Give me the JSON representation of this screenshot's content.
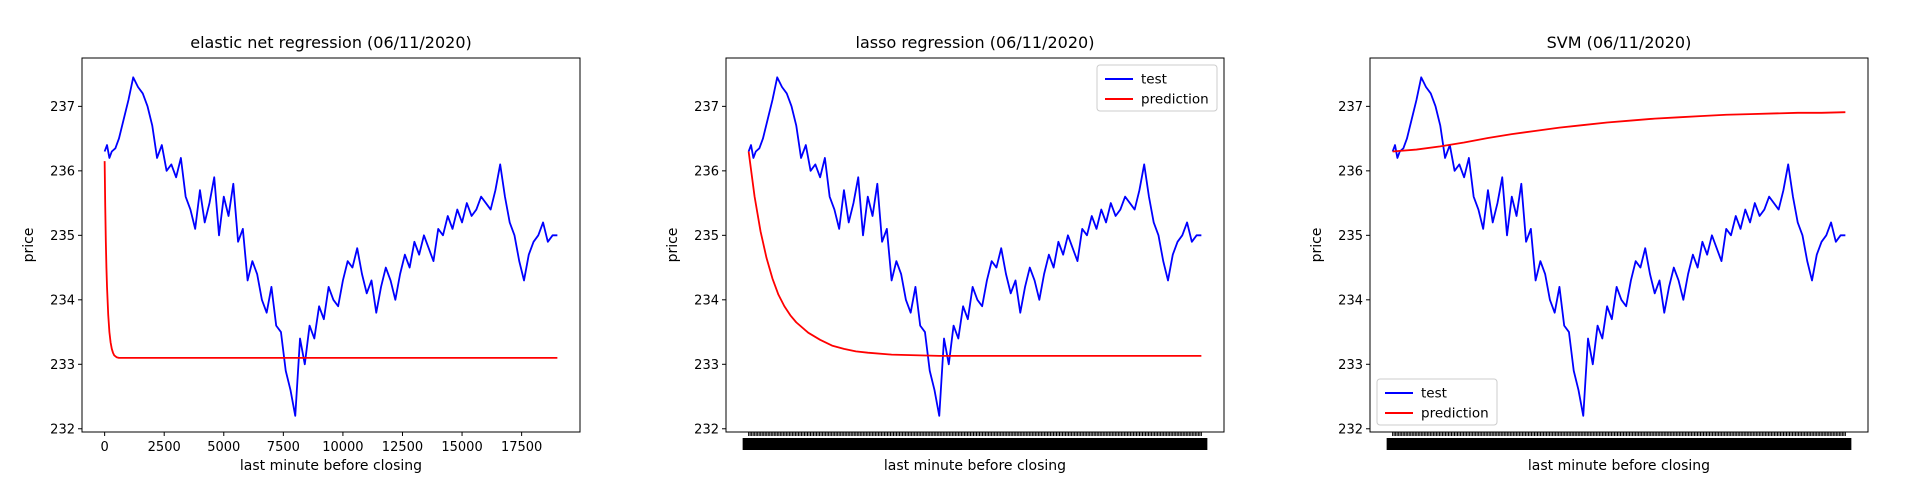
{
  "chart_data": [
    {
      "type": "line",
      "title": "elastic net regression (06/11/2020)",
      "xlabel": "last minute before closing",
      "ylabel": "price",
      "xlim": [
        -950,
        19950
      ],
      "ylim": [
        231.95,
        237.75
      ],
      "xticks": [
        0,
        2500,
        5000,
        7500,
        10000,
        12500,
        15000,
        17500
      ],
      "xtick_labels": [
        "0",
        "2500",
        "5000",
        "7500",
        "10000",
        "12500",
        "15000",
        "17500"
      ],
      "dense_xticks": false,
      "yticks": [
        232,
        233,
        234,
        235,
        236,
        237
      ],
      "ytick_labels": [
        "232",
        "233",
        "234",
        "235",
        "236",
        "237"
      ],
      "legend": null,
      "series": [
        {
          "name": "test",
          "color": "#0000ff",
          "x": [
            0,
            100,
            200,
            300,
            450,
            600,
            800,
            1000,
            1200,
            1400,
            1600,
            1800,
            2000,
            2200,
            2400,
            2600,
            2800,
            3000,
            3200,
            3400,
            3600,
            3800,
            4000,
            4200,
            4400,
            4600,
            4800,
            5000,
            5200,
            5400,
            5600,
            5800,
            6000,
            6200,
            6400,
            6600,
            6800,
            7000,
            7200,
            7400,
            7600,
            7800,
            8000,
            8100,
            8200,
            8400,
            8600,
            8800,
            9000,
            9200,
            9400,
            9600,
            9800,
            10000,
            10200,
            10400,
            10600,
            10800,
            11000,
            11200,
            11400,
            11600,
            11800,
            12000,
            12200,
            12400,
            12600,
            12800,
            13000,
            13200,
            13400,
            13600,
            13800,
            14000,
            14200,
            14400,
            14600,
            14800,
            15000,
            15200,
            15400,
            15600,
            15800,
            16000,
            16200,
            16400,
            16600,
            16800,
            17000,
            17200,
            17400,
            17600,
            17800,
            18000,
            18200,
            18400,
            18600,
            18800,
            19000
          ],
          "y": [
            236.3,
            236.4,
            236.2,
            236.3,
            236.35,
            236.5,
            236.8,
            237.1,
            237.45,
            237.3,
            237.2,
            237.0,
            236.7,
            236.2,
            236.4,
            236.0,
            236.1,
            235.9,
            236.2,
            235.6,
            235.4,
            235.1,
            235.7,
            235.2,
            235.5,
            235.9,
            235.0,
            235.6,
            235.3,
            235.8,
            234.9,
            235.1,
            234.3,
            234.6,
            234.4,
            234.0,
            233.8,
            234.2,
            233.6,
            233.5,
            232.9,
            232.6,
            232.2,
            232.8,
            233.4,
            233.0,
            233.6,
            233.4,
            233.9,
            233.7,
            234.2,
            234.0,
            233.9,
            234.3,
            234.6,
            234.5,
            234.8,
            234.4,
            234.1,
            234.3,
            233.8,
            234.2,
            234.5,
            234.3,
            234.0,
            234.4,
            234.7,
            234.5,
            234.9,
            234.7,
            235.0,
            234.8,
            234.6,
            235.1,
            235.0,
            235.3,
            235.1,
            235.4,
            235.2,
            235.5,
            235.3,
            235.4,
            235.6,
            235.5,
            235.4,
            235.7,
            236.1,
            235.6,
            235.2,
            235.0,
            234.6,
            234.3,
            234.7,
            234.9,
            235.0,
            235.2,
            234.9,
            235.0,
            235.0
          ]
        },
        {
          "name": "prediction",
          "color": "#ff0000",
          "x": [
            0,
            25,
            50,
            75,
            100,
            150,
            200,
            250,
            300,
            350,
            400,
            500,
            600,
            700,
            800,
            1000,
            1500,
            2000,
            5000,
            10000,
            15000,
            19000
          ],
          "y": [
            236.15,
            235.45,
            234.9,
            234.5,
            234.2,
            233.77,
            233.5,
            233.34,
            233.24,
            233.18,
            233.14,
            233.11,
            233.1,
            233.1,
            233.1,
            233.1,
            233.1,
            233.1,
            233.1,
            233.1,
            233.1,
            233.1
          ]
        }
      ]
    },
    {
      "type": "line",
      "title": "lasso regression (06/11/2020)",
      "xlabel": "last minute before closing",
      "ylabel": "price",
      "xlim": [
        -950,
        19950
      ],
      "ylim": [
        231.95,
        237.75
      ],
      "xticks": [],
      "xtick_labels": [],
      "dense_xticks": true,
      "yticks": [
        232,
        233,
        234,
        235,
        236,
        237
      ],
      "ytick_labels": [
        "232",
        "233",
        "234",
        "235",
        "236",
        "237"
      ],
      "legend": {
        "position": "upper right",
        "entries": [
          "test",
          "prediction"
        ]
      },
      "series": [
        {
          "name": "test",
          "color": "#0000ff",
          "x": [
            0,
            100,
            200,
            300,
            450,
            600,
            800,
            1000,
            1200,
            1400,
            1600,
            1800,
            2000,
            2200,
            2400,
            2600,
            2800,
            3000,
            3200,
            3400,
            3600,
            3800,
            4000,
            4200,
            4400,
            4600,
            4800,
            5000,
            5200,
            5400,
            5600,
            5800,
            6000,
            6200,
            6400,
            6600,
            6800,
            7000,
            7200,
            7400,
            7600,
            7800,
            8000,
            8100,
            8200,
            8400,
            8600,
            8800,
            9000,
            9200,
            9400,
            9600,
            9800,
            10000,
            10200,
            10400,
            10600,
            10800,
            11000,
            11200,
            11400,
            11600,
            11800,
            12000,
            12200,
            12400,
            12600,
            12800,
            13000,
            13200,
            13400,
            13600,
            13800,
            14000,
            14200,
            14400,
            14600,
            14800,
            15000,
            15200,
            15400,
            15600,
            15800,
            16000,
            16200,
            16400,
            16600,
            16800,
            17000,
            17200,
            17400,
            17600,
            17800,
            18000,
            18200,
            18400,
            18600,
            18800,
            19000
          ],
          "y": [
            236.3,
            236.4,
            236.2,
            236.3,
            236.35,
            236.5,
            236.8,
            237.1,
            237.45,
            237.3,
            237.2,
            237.0,
            236.7,
            236.2,
            236.4,
            236.0,
            236.1,
            235.9,
            236.2,
            235.6,
            235.4,
            235.1,
            235.7,
            235.2,
            235.5,
            235.9,
            235.0,
            235.6,
            235.3,
            235.8,
            234.9,
            235.1,
            234.3,
            234.6,
            234.4,
            234.0,
            233.8,
            234.2,
            233.6,
            233.5,
            232.9,
            232.6,
            232.2,
            232.8,
            233.4,
            233.0,
            233.6,
            233.4,
            233.9,
            233.7,
            234.2,
            234.0,
            233.9,
            234.3,
            234.6,
            234.5,
            234.8,
            234.4,
            234.1,
            234.3,
            233.8,
            234.2,
            234.5,
            234.3,
            234.0,
            234.4,
            234.7,
            234.5,
            234.9,
            234.7,
            235.0,
            234.8,
            234.6,
            235.1,
            235.0,
            235.3,
            235.1,
            235.4,
            235.2,
            235.5,
            235.3,
            235.4,
            235.6,
            235.5,
            235.4,
            235.7,
            236.1,
            235.6,
            235.2,
            235.0,
            234.6,
            234.3,
            234.7,
            234.9,
            235.0,
            235.2,
            234.9,
            235.0,
            235.0
          ]
        },
        {
          "name": "prediction",
          "color": "#ff0000",
          "x": [
            0,
            250,
            500,
            750,
            1000,
            1250,
            1500,
            1750,
            2000,
            2500,
            3000,
            3500,
            4000,
            4500,
            5000,
            6000,
            7000,
            8000,
            10000,
            12500,
            15000,
            17500,
            19000
          ],
          "y": [
            236.3,
            235.6,
            235.06,
            234.65,
            234.33,
            234.08,
            233.9,
            233.76,
            233.65,
            233.49,
            233.38,
            233.29,
            233.24,
            233.2,
            233.18,
            233.15,
            233.14,
            233.13,
            233.13,
            233.13,
            233.13,
            233.13,
            233.13
          ]
        }
      ]
    },
    {
      "type": "line",
      "title": "SVM (06/11/2020)",
      "xlabel": "last minute before closing",
      "ylabel": "price",
      "xlim": [
        -950,
        19950
      ],
      "ylim": [
        231.95,
        237.75
      ],
      "xticks": [],
      "xtick_labels": [],
      "dense_xticks": true,
      "yticks": [
        232,
        233,
        234,
        235,
        236,
        237
      ],
      "ytick_labels": [
        "232",
        "233",
        "234",
        "235",
        "236",
        "237"
      ],
      "legend": {
        "position": "lower left",
        "entries": [
          "test",
          "prediction"
        ]
      },
      "series": [
        {
          "name": "test",
          "color": "#0000ff",
          "x": [
            0,
            100,
            200,
            300,
            450,
            600,
            800,
            1000,
            1200,
            1400,
            1600,
            1800,
            2000,
            2200,
            2400,
            2600,
            2800,
            3000,
            3200,
            3400,
            3600,
            3800,
            4000,
            4200,
            4400,
            4600,
            4800,
            5000,
            5200,
            5400,
            5600,
            5800,
            6000,
            6200,
            6400,
            6600,
            6800,
            7000,
            7200,
            7400,
            7600,
            7800,
            8000,
            8100,
            8200,
            8400,
            8600,
            8800,
            9000,
            9200,
            9400,
            9600,
            9800,
            10000,
            10200,
            10400,
            10600,
            10800,
            11000,
            11200,
            11400,
            11600,
            11800,
            12000,
            12200,
            12400,
            12600,
            12800,
            13000,
            13200,
            13400,
            13600,
            13800,
            14000,
            14200,
            14400,
            14600,
            14800,
            15000,
            15200,
            15400,
            15600,
            15800,
            16000,
            16200,
            16400,
            16600,
            16800,
            17000,
            17200,
            17400,
            17600,
            17800,
            18000,
            18200,
            18400,
            18600,
            18800,
            19000
          ],
          "y": [
            236.3,
            236.4,
            236.2,
            236.3,
            236.35,
            236.5,
            236.8,
            237.1,
            237.45,
            237.3,
            237.2,
            237.0,
            236.7,
            236.2,
            236.4,
            236.0,
            236.1,
            235.9,
            236.2,
            235.6,
            235.4,
            235.1,
            235.7,
            235.2,
            235.5,
            235.9,
            235.0,
            235.6,
            235.3,
            235.8,
            234.9,
            235.1,
            234.3,
            234.6,
            234.4,
            234.0,
            233.8,
            234.2,
            233.6,
            233.5,
            232.9,
            232.6,
            232.2,
            232.8,
            233.4,
            233.0,
            233.6,
            233.4,
            233.9,
            233.7,
            234.2,
            234.0,
            233.9,
            234.3,
            234.6,
            234.5,
            234.8,
            234.4,
            234.1,
            234.3,
            233.8,
            234.2,
            234.5,
            234.3,
            234.0,
            234.4,
            234.7,
            234.5,
            234.9,
            234.7,
            235.0,
            234.8,
            234.6,
            235.1,
            235.0,
            235.3,
            235.1,
            235.4,
            235.2,
            235.5,
            235.3,
            235.4,
            235.6,
            235.5,
            235.4,
            235.7,
            236.1,
            235.6,
            235.2,
            235.0,
            234.6,
            234.3,
            234.7,
            234.9,
            235.0,
            235.2,
            234.9,
            235.0,
            235.0
          ]
        },
        {
          "name": "prediction",
          "color": "#ff0000",
          "x": [
            0,
            1000,
            2000,
            3000,
            4000,
            5000,
            6000,
            7000,
            8000,
            9000,
            10000,
            11000,
            12000,
            13000,
            14000,
            15000,
            16000,
            17000,
            18000,
            19000
          ],
          "y": [
            236.3,
            236.33,
            236.38,
            236.44,
            236.51,
            236.57,
            236.62,
            236.67,
            236.71,
            236.75,
            236.78,
            236.81,
            236.83,
            236.85,
            236.87,
            236.88,
            236.89,
            236.9,
            236.9,
            236.91
          ]
        }
      ]
    }
  ]
}
